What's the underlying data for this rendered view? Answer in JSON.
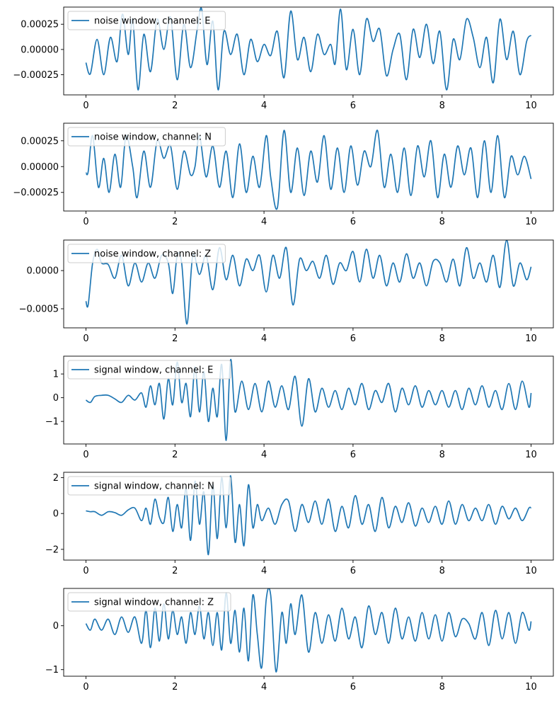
{
  "figure": {
    "line_color": "#1f77b4",
    "axes_color": "#000000",
    "background": "#ffffff"
  },
  "chart_data": [
    {
      "type": "line",
      "series": [
        {
          "name": "noise window, channel: E"
        }
      ],
      "legend_position": "upper left",
      "grid": false,
      "xlim": [
        -0.5,
        10.5
      ],
      "ylim": [
        -0.00045,
        0.00042
      ],
      "xticks": [
        0,
        2,
        4,
        6,
        8,
        10
      ],
      "xtick_labels": [
        "0",
        "2",
        "4",
        "6",
        "8",
        "10"
      ],
      "yticks": [
        0.00025,
        0.0,
        -0.00025
      ],
      "ytick_labels": [
        "0.00025",
        "0.00000",
        "−0.00025"
      ],
      "x": [
        0,
        0.1,
        0.25,
        0.4,
        0.55,
        0.7,
        0.82,
        0.95,
        1.05,
        1.17,
        1.3,
        1.45,
        1.6,
        1.75,
        1.9,
        2.05,
        2.2,
        2.35,
        2.5,
        2.6,
        2.72,
        2.85,
        2.97,
        3.1,
        3.25,
        3.4,
        3.55,
        3.7,
        3.85,
        4.0,
        4.15,
        4.3,
        4.45,
        4.6,
        4.75,
        4.9,
        5.05,
        5.2,
        5.35,
        5.5,
        5.6,
        5.72,
        5.85,
        6.0,
        6.15,
        6.3,
        6.45,
        6.6,
        6.75,
        6.9,
        7.05,
        7.2,
        7.35,
        7.5,
        7.65,
        7.8,
        7.95,
        8.1,
        8.25,
        8.4,
        8.55,
        8.7,
        8.85,
        9.0,
        9.15,
        9.3,
        9.45,
        9.6,
        9.75,
        9.9,
        10.0
      ],
      "y": [
        -0.00013,
        -0.00024,
        0.0001,
        -0.00025,
        0.00012,
        -0.00012,
        0.00035,
        -5e-05,
        0.0003,
        -0.0004,
        0.00015,
        -0.00022,
        0.0003,
        0.0,
        0.00032,
        -0.0003,
        0.00025,
        -0.00018,
        0.0002,
        0.0004,
        -0.00015,
        0.00028,
        -0.0004,
        0.00018,
        -5e-05,
        0.00015,
        -0.00025,
        0.0001,
        -0.00012,
        5e-05,
        -6e-05,
        0.00018,
        -0.00028,
        0.00038,
        -0.0001,
        0.00012,
        -0.00022,
        0.00015,
        -5e-05,
        5e-05,
        -0.00014,
        0.0004,
        -0.0002,
        0.0002,
        -0.00025,
        0.0003,
        8e-05,
        0.0002,
        -0.00026,
        0.0,
        0.00015,
        -0.0003,
        0.0002,
        -8e-05,
        0.00025,
        -0.00014,
        0.00018,
        -0.0004,
        0.0001,
        -0.0001,
        0.0003,
        0.00012,
        -0.00018,
        0.00012,
        -0.00033,
        0.0003,
        -0.0001,
        0.00018,
        -0.00025,
        8e-05,
        0.00014
      ]
    },
    {
      "type": "line",
      "series": [
        {
          "name": "noise window, channel: N"
        }
      ],
      "legend_position": "upper left",
      "grid": false,
      "xlim": [
        -0.5,
        10.5
      ],
      "ylim": [
        -0.00043,
        0.00042
      ],
      "xticks": [
        0,
        2,
        4,
        6,
        8,
        10
      ],
      "xtick_labels": [
        "0",
        "2",
        "4",
        "6",
        "8",
        "10"
      ],
      "yticks": [
        0.00025,
        0.0,
        -0.00025
      ],
      "ytick_labels": [
        "0.00025",
        "0.00000",
        "−0.00025"
      ],
      "x": [
        0,
        0.05,
        0.15,
        0.28,
        0.4,
        0.52,
        0.65,
        0.78,
        0.9,
        1.05,
        1.15,
        1.3,
        1.45,
        1.6,
        1.75,
        1.9,
        2.05,
        2.2,
        2.35,
        2.45,
        2.55,
        2.7,
        2.85,
        3.0,
        3.15,
        3.3,
        3.45,
        3.6,
        3.75,
        3.9,
        4.05,
        4.15,
        4.3,
        4.45,
        4.6,
        4.75,
        4.9,
        5.05,
        5.2,
        5.35,
        5.5,
        5.65,
        5.8,
        5.95,
        6.1,
        6.25,
        6.4,
        6.55,
        6.7,
        6.85,
        7.0,
        7.15,
        7.3,
        7.45,
        7.6,
        7.75,
        7.9,
        8.05,
        8.2,
        8.35,
        8.5,
        8.65,
        8.8,
        8.95,
        9.1,
        9.25,
        9.4,
        9.55,
        9.7,
        9.85,
        10.0
      ],
      "y": [
        -6e-05,
        -5e-05,
        0.0003,
        -0.0002,
        8e-05,
        -0.00025,
        0.00012,
        -0.0002,
        0.0003,
        0.0,
        -0.0003,
        0.00015,
        -0.0002,
        0.00025,
        8e-05,
        0.0002,
        -0.00022,
        0.00015,
        -8e-05,
        0.0,
        0.0003,
        -0.0001,
        0.0002,
        -0.0002,
        0.00015,
        -0.0003,
        0.00022,
        -0.00025,
        0.0001,
        -0.0002,
        0.0003,
        -0.0001,
        -0.0004,
        0.00035,
        -0.00025,
        0.00018,
        -0.00028,
        0.00015,
        -0.00015,
        0.0003,
        -0.00022,
        0.00018,
        -0.00025,
        0.0002,
        -0.00018,
        0.00015,
        0.0,
        0.00035,
        -0.0002,
        0.00012,
        -0.00025,
        0.00018,
        -0.00028,
        0.0002,
        -0.0001,
        0.00025,
        -0.0003,
        0.00012,
        -0.0002,
        0.0002,
        -8e-05,
        0.00018,
        -0.0003,
        0.00025,
        -0.00025,
        0.0003,
        -0.0003,
        0.0001,
        -8e-05,
        0.0001,
        -0.00012
      ]
    },
    {
      "type": "line",
      "series": [
        {
          "name": "noise window, channel: Z"
        }
      ],
      "legend_position": "upper left",
      "grid": false,
      "xlim": [
        -0.5,
        10.5
      ],
      "ylim": [
        -0.00075,
        0.0004
      ],
      "xticks": [
        0,
        2,
        4,
        6,
        8,
        10
      ],
      "xtick_labels": [
        "0",
        "2",
        "4",
        "6",
        "8",
        "10"
      ],
      "yticks": [
        0.0,
        -0.0005
      ],
      "ytick_labels": [
        "0.0000",
        "−0.0005"
      ],
      "x": [
        0,
        0.05,
        0.15,
        0.25,
        0.35,
        0.5,
        0.65,
        0.8,
        0.95,
        1.1,
        1.25,
        1.4,
        1.55,
        1.7,
        1.85,
        1.95,
        2.05,
        2.15,
        2.27,
        2.4,
        2.55,
        2.7,
        2.85,
        3.0,
        3.15,
        3.3,
        3.45,
        3.6,
        3.75,
        3.9,
        4.05,
        4.2,
        4.35,
        4.5,
        4.65,
        4.8,
        4.95,
        5.1,
        5.25,
        5.4,
        5.55,
        5.7,
        5.85,
        6.0,
        6.15,
        6.3,
        6.45,
        6.6,
        6.75,
        6.9,
        7.05,
        7.2,
        7.35,
        7.5,
        7.65,
        7.8,
        7.95,
        8.1,
        8.25,
        8.4,
        8.55,
        8.7,
        8.85,
        9.0,
        9.15,
        9.3,
        9.45,
        9.6,
        9.75,
        9.9,
        10.0
      ],
      "y": [
        -0.0004,
        -0.00045,
        0.0001,
        0.00028,
        0.0001,
        8e-05,
        -0.0001,
        0.0002,
        -0.0002,
        0.0001,
        -0.00015,
        0.0001,
        -0.0001,
        0.0002,
        0.0001,
        -0.0003,
        0.0002,
        0.0001,
        -0.0007,
        0.0002,
        -5e-05,
        0.0002,
        -0.00025,
        0.0003,
        -0.00012,
        0.0002,
        -0.0002,
        0.00015,
        0.0,
        0.0002,
        -0.00028,
        0.0002,
        -0.0001,
        0.0003,
        -0.00045,
        0.00015,
        0.0,
        0.00012,
        -0.0001,
        0.0002,
        -0.00018,
        0.0001,
        0.0,
        0.00025,
        -0.00015,
        0.00028,
        -0.0001,
        0.0002,
        -0.0002,
        0.0001,
        -0.00015,
        0.00022,
        -0.0001,
        0.0001,
        -0.0002,
        0.00012,
        0.0001,
        -0.00015,
        0.00015,
        -0.0002,
        0.0003,
        -0.0001,
        0.0001,
        -0.00015,
        0.0002,
        -0.00022,
        0.0004,
        -0.0002,
        0.0001,
        -0.00012,
        5e-05
      ]
    },
    {
      "type": "line",
      "series": [
        {
          "name": "signal window, channel: E"
        }
      ],
      "legend_position": "upper left",
      "grid": false,
      "xlim": [
        -0.5,
        10.5
      ],
      "ylim": [
        -1.95,
        1.75
      ],
      "xticks": [
        0,
        2,
        4,
        6,
        8,
        10
      ],
      "xtick_labels": [
        "0",
        "2",
        "4",
        "6",
        "8",
        "10"
      ],
      "yticks": [
        1,
        0,
        -1
      ],
      "ytick_labels": [
        "1",
        "0",
        "−1"
      ],
      "x": [
        0,
        0.1,
        0.2,
        0.35,
        0.5,
        0.65,
        0.8,
        0.95,
        1.1,
        1.25,
        1.35,
        1.45,
        1.55,
        1.65,
        1.75,
        1.85,
        1.95,
        2.05,
        2.15,
        2.25,
        2.35,
        2.45,
        2.55,
        2.65,
        2.75,
        2.85,
        2.95,
        3.05,
        3.15,
        3.25,
        3.35,
        3.5,
        3.65,
        3.8,
        3.95,
        4.1,
        4.25,
        4.4,
        4.55,
        4.7,
        4.85,
        5.0,
        5.15,
        5.3,
        5.45,
        5.6,
        5.75,
        5.9,
        6.05,
        6.2,
        6.35,
        6.5,
        6.65,
        6.8,
        6.95,
        7.1,
        7.25,
        7.4,
        7.55,
        7.7,
        7.85,
        8.0,
        8.15,
        8.3,
        8.45,
        8.6,
        8.75,
        8.9,
        9.05,
        9.2,
        9.35,
        9.5,
        9.65,
        9.8,
        9.95,
        10.0
      ],
      "y": [
        -0.1,
        -0.2,
        0.05,
        0.1,
        0.1,
        -0.05,
        -0.2,
        0.1,
        -0.1,
        0.2,
        -0.4,
        0.5,
        -0.3,
        0.6,
        -0.9,
        0.8,
        -0.3,
        1.5,
        -0.2,
        0.6,
        -0.8,
        1.3,
        -0.6,
        1.1,
        -1.0,
        0.4,
        -0.8,
        1.4,
        -1.8,
        1.6,
        -0.6,
        0.7,
        -0.5,
        0.6,
        -0.6,
        0.7,
        -0.4,
        0.5,
        -0.5,
        0.9,
        -1.2,
        0.8,
        -0.6,
        0.4,
        -0.4,
        0.3,
        -0.5,
        0.4,
        -0.3,
        0.6,
        -0.5,
        0.3,
        -0.2,
        0.6,
        -0.6,
        0.4,
        -0.3,
        0.5,
        -0.4,
        0.3,
        -0.3,
        0.3,
        -0.4,
        0.3,
        -0.5,
        0.4,
        -0.3,
        0.5,
        -0.4,
        0.3,
        -0.5,
        0.6,
        -0.5,
        0.7,
        -0.4,
        0.2
      ]
    },
    {
      "type": "line",
      "series": [
        {
          "name": "signal window, channel: N"
        }
      ],
      "legend_position": "upper left",
      "grid": false,
      "xlim": [
        -0.5,
        10.5
      ],
      "ylim": [
        -2.6,
        2.3
      ],
      "xticks": [
        0,
        2,
        4,
        6,
        8,
        10
      ],
      "xtick_labels": [
        "0",
        "2",
        "4",
        "6",
        "8",
        "10"
      ],
      "yticks": [
        2,
        0,
        -2
      ],
      "ytick_labels": [
        "2",
        "0",
        "−2"
      ],
      "x": [
        0,
        0.1,
        0.2,
        0.35,
        0.5,
        0.65,
        0.8,
        0.95,
        1.1,
        1.25,
        1.35,
        1.45,
        1.55,
        1.65,
        1.75,
        1.85,
        1.95,
        2.05,
        2.15,
        2.25,
        2.35,
        2.45,
        2.55,
        2.65,
        2.75,
        2.85,
        2.95,
        3.05,
        3.15,
        3.25,
        3.35,
        3.45,
        3.55,
        3.65,
        3.75,
        3.85,
        3.95,
        4.1,
        4.25,
        4.4,
        4.55,
        4.7,
        4.85,
        5.0,
        5.15,
        5.3,
        5.45,
        5.6,
        5.75,
        5.9,
        6.05,
        6.2,
        6.35,
        6.5,
        6.65,
        6.8,
        6.95,
        7.1,
        7.25,
        7.4,
        7.55,
        7.7,
        7.85,
        8.0,
        8.15,
        8.3,
        8.45,
        8.6,
        8.75,
        8.9,
        9.05,
        9.2,
        9.35,
        9.5,
        9.65,
        9.8,
        9.95,
        10.0
      ],
      "y": [
        0.15,
        0.1,
        0.1,
        -0.1,
        0.1,
        0.05,
        -0.1,
        0.2,
        0.3,
        -0.4,
        0.3,
        -0.6,
        0.8,
        -0.2,
        -0.5,
        0.9,
        -1.0,
        0.5,
        -0.8,
        1.4,
        -1.5,
        1.8,
        -0.6,
        1.2,
        -2.3,
        1.6,
        -1.4,
        2.0,
        -0.8,
        2.1,
        -1.6,
        0.5,
        -1.8,
        1.6,
        -0.8,
        0.5,
        -0.4,
        0.3,
        -0.6,
        0.5,
        0.7,
        -1.0,
        0.5,
        -0.5,
        0.7,
        -0.6,
        0.8,
        -1.0,
        0.4,
        -0.8,
        1.0,
        -0.6,
        0.5,
        -1.0,
        0.9,
        -0.8,
        0.4,
        -0.5,
        0.6,
        -0.7,
        0.3,
        -0.5,
        0.4,
        -0.6,
        0.7,
        -0.6,
        0.5,
        -0.4,
        0.3,
        -0.4,
        0.5,
        -0.6,
        0.4,
        -0.3,
        0.3,
        -0.4,
        0.3,
        0.3
      ]
    },
    {
      "type": "line",
      "series": [
        {
          "name": "signal window, channel: Z"
        }
      ],
      "legend_position": "upper left",
      "grid": false,
      "xlim": [
        -0.5,
        10.5
      ],
      "ylim": [
        -1.15,
        0.85
      ],
      "xticks": [
        0,
        2,
        4,
        6,
        8,
        10
      ],
      "xtick_labels": [
        "0",
        "2",
        "4",
        "6",
        "8",
        "10"
      ],
      "yticks": [
        0,
        -1
      ],
      "ytick_labels": [
        "0",
        "−1"
      ],
      "x": [
        0,
        0.1,
        0.2,
        0.35,
        0.5,
        0.65,
        0.8,
        0.95,
        1.1,
        1.25,
        1.35,
        1.45,
        1.55,
        1.65,
        1.75,
        1.85,
        1.95,
        2.05,
        2.15,
        2.25,
        2.35,
        2.45,
        2.55,
        2.65,
        2.75,
        2.85,
        2.95,
        3.05,
        3.15,
        3.25,
        3.35,
        3.45,
        3.55,
        3.65,
        3.75,
        3.85,
        3.95,
        4.05,
        4.15,
        4.27,
        4.4,
        4.5,
        4.6,
        4.7,
        4.85,
        5.0,
        5.15,
        5.3,
        5.45,
        5.6,
        5.75,
        5.9,
        6.05,
        6.2,
        6.35,
        6.5,
        6.65,
        6.8,
        6.95,
        7.1,
        7.25,
        7.4,
        7.55,
        7.7,
        7.85,
        8.0,
        8.15,
        8.3,
        8.45,
        8.6,
        8.75,
        8.9,
        9.05,
        9.2,
        9.35,
        9.5,
        9.65,
        9.8,
        9.95,
        10.0
      ],
      "y": [
        0.05,
        -0.1,
        0.15,
        -0.1,
        0.15,
        -0.2,
        0.2,
        -0.15,
        0.2,
        -0.4,
        0.35,
        -0.5,
        0.4,
        -0.35,
        0.5,
        -0.3,
        0.35,
        -0.2,
        0.2,
        -0.4,
        0.3,
        -0.2,
        0.45,
        -0.3,
        0.3,
        -0.45,
        0.3,
        -0.55,
        0.75,
        -0.4,
        0.35,
        -0.6,
        0.4,
        -0.8,
        0.7,
        -0.2,
        -0.95,
        0.6,
        0.7,
        -1.05,
        0.3,
        -0.4,
        0.5,
        -0.2,
        0.7,
        -0.6,
        0.3,
        -0.4,
        0.25,
        -0.35,
        0.4,
        -0.3,
        0.2,
        -0.5,
        0.45,
        -0.2,
        0.3,
        -0.4,
        0.4,
        -0.3,
        0.2,
        -0.35,
        0.3,
        -0.3,
        0.25,
        -0.35,
        0.3,
        -0.25,
        0.15,
        0.05,
        -0.3,
        0.3,
        -0.45,
        0.35,
        -0.3,
        0.3,
        -0.4,
        0.3,
        -0.1,
        0.1
      ]
    }
  ]
}
